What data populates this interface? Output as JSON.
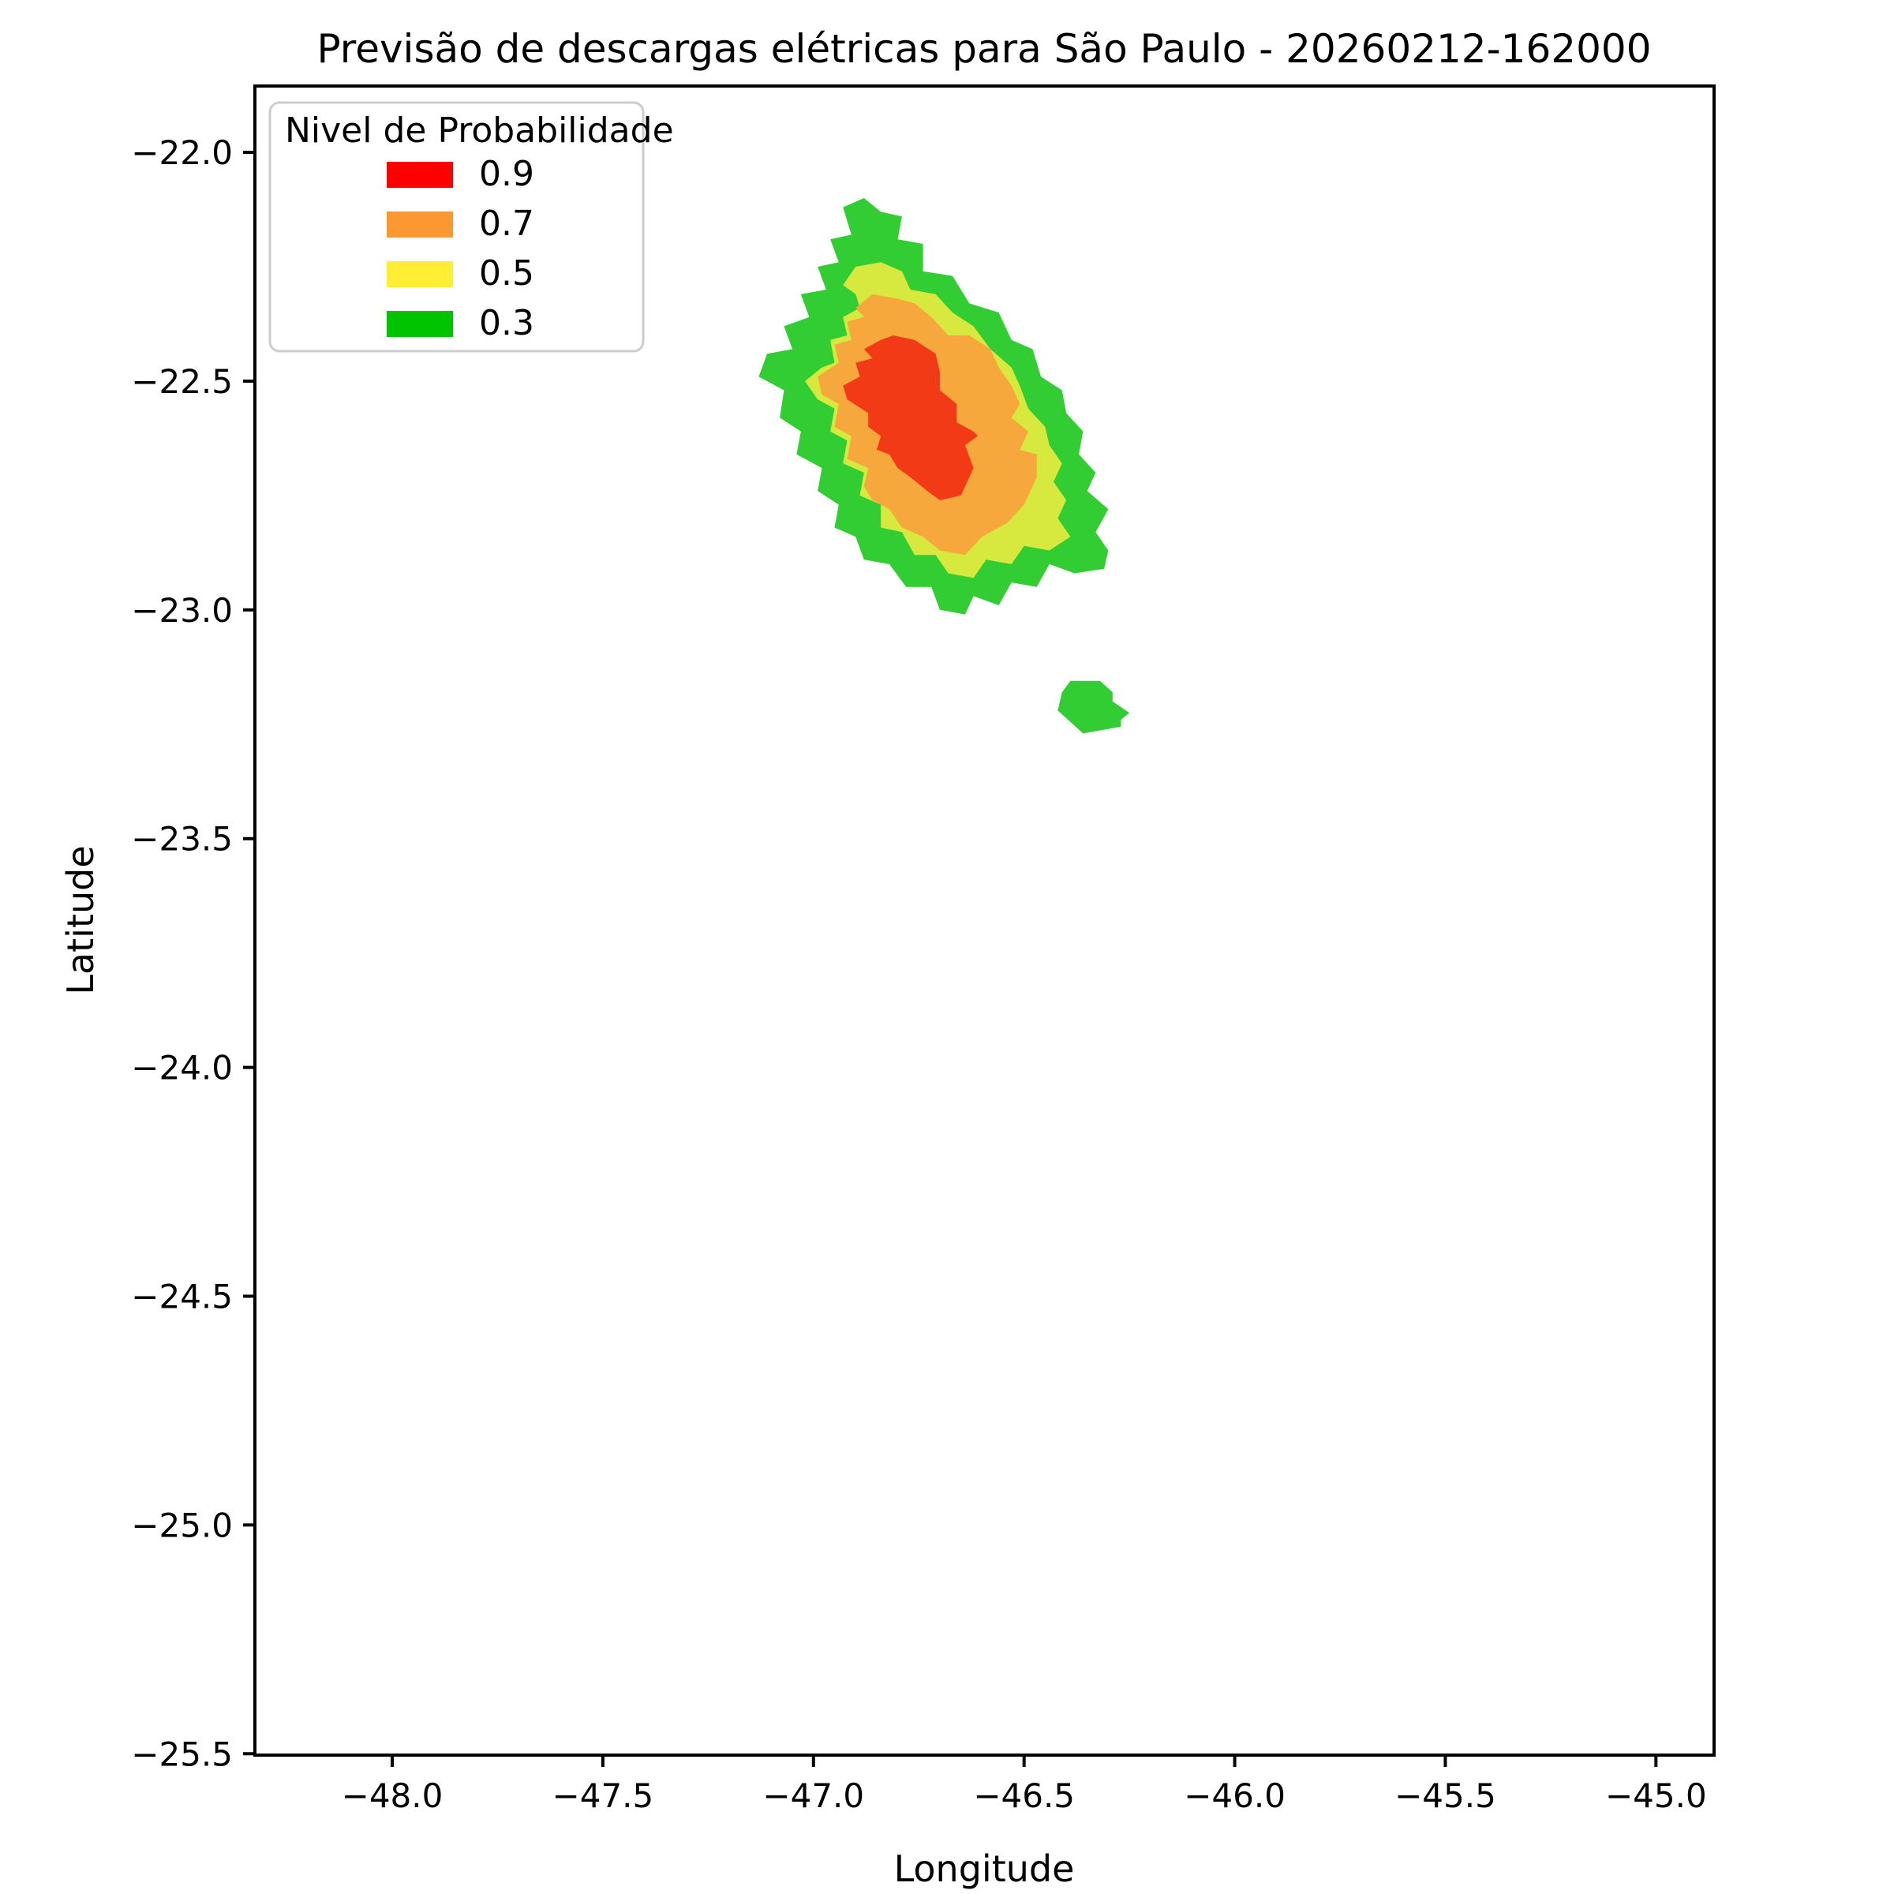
{
  "figure": {
    "title": "Previsão de descargas elétricas para São Paulo - 20260212-162000"
  },
  "chart_data": {
    "type": "contour",
    "title": "Previsão de descargas elétricas para São Paulo - 20260212-162000",
    "xlabel": "Longitude",
    "ylabel": "Latitude",
    "xlim": [
      -48.326,
      -44.862
    ],
    "ylim": [
      -25.503,
      -21.855
    ],
    "grid": false,
    "xticks": [
      -48.0,
      -47.5,
      -47.0,
      -46.5,
      -46.0,
      -45.5,
      -45.0
    ],
    "yticks": [
      -22.0,
      -22.5,
      -23.0,
      -23.5,
      -24.0,
      -24.5,
      -25.0,
      -25.5
    ],
    "xtick_labels": [
      "−48.0",
      "−47.5",
      "−47.0",
      "−46.5",
      "−46.0",
      "−45.5",
      "−45.0"
    ],
    "ytick_labels": [
      "−22.0",
      "−22.5",
      "−23.0",
      "−23.5",
      "−24.0",
      "−24.5",
      "−25.0",
      "−25.5"
    ],
    "levels": [
      0.3,
      0.5,
      0.7,
      0.9
    ],
    "regions": [
      {
        "level": 0.3,
        "color": "#32CD32",
        "polygons": [
          [
            [
              -46.88,
              -22.1
            ],
            [
              -46.84,
              -22.13
            ],
            [
              -46.79,
              -22.14
            ],
            [
              -46.8,
              -22.19
            ],
            [
              -46.74,
              -22.2
            ],
            [
              -46.74,
              -22.26
            ],
            [
              -46.67,
              -22.27
            ],
            [
              -46.63,
              -22.33
            ],
            [
              -46.56,
              -22.35
            ],
            [
              -46.53,
              -22.41
            ],
            [
              -46.48,
              -22.43
            ],
            [
              -46.46,
              -22.49
            ],
            [
              -46.41,
              -22.52
            ],
            [
              -46.4,
              -22.57
            ],
            [
              -46.36,
              -22.61
            ],
            [
              -46.37,
              -22.66
            ],
            [
              -46.33,
              -22.7
            ],
            [
              -46.35,
              -22.74
            ],
            [
              -46.3,
              -22.78
            ],
            [
              -46.33,
              -22.83
            ],
            [
              -46.3,
              -22.87
            ],
            [
              -46.31,
              -22.91
            ],
            [
              -46.38,
              -22.92
            ],
            [
              -46.44,
              -22.9
            ],
            [
              -46.47,
              -22.95
            ],
            [
              -46.53,
              -22.94
            ],
            [
              -46.56,
              -22.99
            ],
            [
              -46.62,
              -22.97
            ],
            [
              -46.64,
              -23.01
            ],
            [
              -46.7,
              -23.0
            ],
            [
              -46.72,
              -22.95
            ],
            [
              -46.78,
              -22.95
            ],
            [
              -46.82,
              -22.9
            ],
            [
              -46.88,
              -22.89
            ],
            [
              -46.9,
              -22.84
            ],
            [
              -46.95,
              -22.82
            ],
            [
              -46.94,
              -22.77
            ],
            [
              -46.99,
              -22.74
            ],
            [
              -46.98,
              -22.69
            ],
            [
              -47.04,
              -22.66
            ],
            [
              -47.03,
              -22.61
            ],
            [
              -47.08,
              -22.58
            ],
            [
              -47.07,
              -22.52
            ],
            [
              -47.13,
              -22.49
            ],
            [
              -47.11,
              -22.44
            ],
            [
              -47.05,
              -22.43
            ],
            [
              -47.07,
              -22.38
            ],
            [
              -47.01,
              -22.36
            ],
            [
              -47.03,
              -22.31
            ],
            [
              -46.97,
              -22.3
            ],
            [
              -46.99,
              -22.25
            ],
            [
              -46.94,
              -22.24
            ],
            [
              -46.96,
              -22.19
            ],
            [
              -46.91,
              -22.18
            ],
            [
              -46.93,
              -22.12
            ]
          ],
          [
            [
              -46.39,
              -23.155
            ],
            [
              -46.32,
              -23.155
            ],
            [
              -46.29,
              -23.18
            ],
            [
              -46.29,
              -23.2
            ],
            [
              -46.25,
              -23.225
            ],
            [
              -46.27,
              -23.24
            ],
            [
              -46.27,
              -23.255
            ],
            [
              -46.36,
              -23.27
            ],
            [
              -46.42,
              -23.22
            ],
            [
              -46.41,
              -23.18
            ]
          ]
        ]
      },
      {
        "level": 0.5,
        "color": "#D7E93F",
        "polygons": [
          [
            [
              -46.93,
              -22.29
            ],
            [
              -46.9,
              -22.25
            ],
            [
              -46.84,
              -22.24
            ],
            [
              -46.79,
              -22.26
            ],
            [
              -46.77,
              -22.3
            ],
            [
              -46.71,
              -22.31
            ],
            [
              -46.67,
              -22.35
            ],
            [
              -46.62,
              -22.38
            ],
            [
              -46.58,
              -22.43
            ],
            [
              -46.53,
              -22.47
            ],
            [
              -46.51,
              -22.51
            ],
            [
              -46.49,
              -22.56
            ],
            [
              -46.45,
              -22.6
            ],
            [
              -46.44,
              -22.64
            ],
            [
              -46.41,
              -22.68
            ],
            [
              -46.43,
              -22.72
            ],
            [
              -46.4,
              -22.76
            ],
            [
              -46.42,
              -22.8
            ],
            [
              -46.39,
              -22.84
            ],
            [
              -46.44,
              -22.87
            ],
            [
              -46.5,
              -22.86
            ],
            [
              -46.53,
              -22.9
            ],
            [
              -46.59,
              -22.89
            ],
            [
              -46.62,
              -22.93
            ],
            [
              -46.68,
              -22.92
            ],
            [
              -46.71,
              -22.88
            ],
            [
              -46.76,
              -22.88
            ],
            [
              -46.79,
              -22.83
            ],
            [
              -46.84,
              -22.82
            ],
            [
              -46.84,
              -22.77
            ],
            [
              -46.89,
              -22.75
            ],
            [
              -46.88,
              -22.7
            ],
            [
              -46.93,
              -22.68
            ],
            [
              -46.92,
              -22.63
            ],
            [
              -46.96,
              -22.61
            ],
            [
              -46.95,
              -22.56
            ],
            [
              -46.99,
              -22.54
            ],
            [
              -47.02,
              -22.5
            ],
            [
              -46.98,
              -22.47
            ],
            [
              -46.95,
              -22.46
            ],
            [
              -46.96,
              -22.41
            ],
            [
              -46.92,
              -22.4
            ],
            [
              -46.93,
              -22.36
            ],
            [
              -46.89,
              -22.34
            ],
            [
              -46.9,
              -22.31
            ]
          ]
        ]
      },
      {
        "level": 0.7,
        "color": "#F7A83C",
        "polygons": [
          [
            [
              -46.9,
              -22.34
            ],
            [
              -46.86,
              -22.31
            ],
            [
              -46.8,
              -22.32
            ],
            [
              -46.76,
              -22.33
            ],
            [
              -46.72,
              -22.36
            ],
            [
              -46.68,
              -22.4
            ],
            [
              -46.63,
              -22.4
            ],
            [
              -46.58,
              -22.43
            ],
            [
              -46.56,
              -22.47
            ],
            [
              -46.53,
              -22.51
            ],
            [
              -46.51,
              -22.55
            ],
            [
              -46.53,
              -22.58
            ],
            [
              -46.49,
              -22.61
            ],
            [
              -46.51,
              -22.65
            ],
            [
              -46.47,
              -22.66
            ],
            [
              -46.47,
              -22.71
            ],
            [
              -46.5,
              -22.77
            ],
            [
              -46.54,
              -22.81
            ],
            [
              -46.6,
              -22.84
            ],
            [
              -46.64,
              -22.88
            ],
            [
              -46.7,
              -22.87
            ],
            [
              -46.74,
              -22.84
            ],
            [
              -46.79,
              -22.82
            ],
            [
              -46.82,
              -22.78
            ],
            [
              -46.86,
              -22.76
            ],
            [
              -46.88,
              -22.73
            ],
            [
              -46.87,
              -22.69
            ],
            [
              -46.92,
              -22.67
            ],
            [
              -46.91,
              -22.62
            ],
            [
              -46.95,
              -22.6
            ],
            [
              -46.94,
              -22.55
            ],
            [
              -46.98,
              -22.53
            ],
            [
              -46.99,
              -22.49
            ],
            [
              -46.94,
              -22.46
            ],
            [
              -46.95,
              -22.42
            ],
            [
              -46.91,
              -22.41
            ],
            [
              -46.92,
              -22.37
            ],
            [
              -46.88,
              -22.36
            ]
          ]
        ]
      },
      {
        "level": 0.9,
        "color": "#F33A16",
        "polygons": [
          [
            [
              -46.88,
              -22.43
            ],
            [
              -46.84,
              -22.41
            ],
            [
              -46.81,
              -22.4
            ],
            [
              -46.76,
              -22.41
            ],
            [
              -46.71,
              -22.44
            ],
            [
              -46.7,
              -22.48
            ],
            [
              -46.7,
              -22.52
            ],
            [
              -46.66,
              -22.55
            ],
            [
              -46.66,
              -22.59
            ],
            [
              -46.62,
              -22.61
            ],
            [
              -46.61,
              -22.62
            ],
            [
              -46.64,
              -22.64
            ],
            [
              -46.62,
              -22.69
            ],
            [
              -46.65,
              -22.75
            ],
            [
              -46.7,
              -22.76
            ],
            [
              -46.73,
              -22.74
            ],
            [
              -46.77,
              -22.71
            ],
            [
              -46.8,
              -22.69
            ],
            [
              -46.82,
              -22.66
            ],
            [
              -46.85,
              -22.65
            ],
            [
              -46.84,
              -22.62
            ],
            [
              -46.87,
              -22.6
            ],
            [
              -46.87,
              -22.57
            ],
            [
              -46.92,
              -22.54
            ],
            [
              -46.93,
              -22.51
            ],
            [
              -46.89,
              -22.49
            ],
            [
              -46.9,
              -22.46
            ],
            [
              -46.86,
              -22.45
            ]
          ]
        ]
      }
    ]
  },
  "legend": {
    "title": "Nivel de Probabilidade",
    "position": "upper left",
    "entries": [
      {
        "label": "0.9",
        "color": "#FF0000"
      },
      {
        "label": "0.7",
        "color": "#FB9832"
      },
      {
        "label": "0.5",
        "color": "#FFEE33"
      },
      {
        "label": "0.3",
        "color": "#00C400"
      }
    ]
  }
}
